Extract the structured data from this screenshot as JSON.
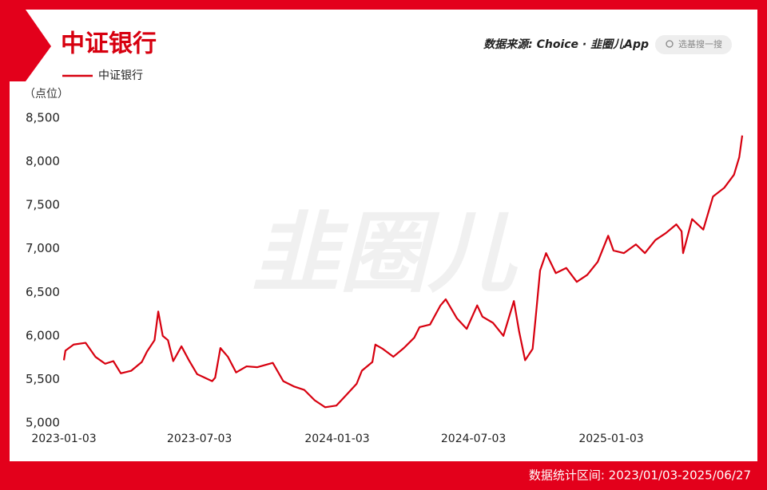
{
  "chart_data": {
    "type": "line",
    "title": "中证银行",
    "unit_label": "（点位）",
    "source": "数据来源: Choice · 韭圈儿App",
    "search_placeholder": "选基搜一搜",
    "watermark": "韭圈儿",
    "footer": "数据统计区间: 2023/01/03-2025/06/27",
    "x": [
      "2023-01-03",
      "2023-01-05",
      "2023-01-16",
      "2023-02-01",
      "2023-02-14",
      "2023-02-27",
      "2023-03-10",
      "2023-03-20",
      "2023-04-03",
      "2023-04-17",
      "2023-04-24",
      "2023-05-04",
      "2023-05-09",
      "2023-05-15",
      "2023-05-22",
      "2023-05-29",
      "2023-06-09",
      "2023-06-19",
      "2023-06-30",
      "2023-07-10",
      "2023-07-20",
      "2023-07-24",
      "2023-07-31",
      "2023-08-10",
      "2023-08-21",
      "2023-09-04",
      "2023-09-18",
      "2023-10-09",
      "2023-10-23",
      "2023-11-06",
      "2023-11-20",
      "2023-12-04",
      "2023-12-18",
      "2024-01-02",
      "2024-01-15",
      "2024-01-29",
      "2024-02-05",
      "2024-02-19",
      "2024-02-23",
      "2024-03-04",
      "2024-03-18",
      "2024-04-01",
      "2024-04-15",
      "2024-04-22",
      "2024-05-06",
      "2024-05-20",
      "2024-05-27",
      "2024-06-11",
      "2024-06-24",
      "2024-07-08",
      "2024-07-15",
      "2024-07-29",
      "2024-08-12",
      "2024-08-26",
      "2024-09-02",
      "2024-09-10",
      "2024-09-20",
      "2024-09-24",
      "2024-09-30",
      "2024-10-08",
      "2024-10-21",
      "2024-11-04",
      "2024-11-18",
      "2024-12-02",
      "2024-12-16",
      "2024-12-30",
      "2025-01-06",
      "2025-01-20",
      "2025-02-05",
      "2025-02-17",
      "2025-03-03",
      "2025-03-17",
      "2025-03-31",
      "2025-04-07",
      "2025-04-09",
      "2025-04-21",
      "2025-05-06",
      "2025-05-19",
      "2025-06-03",
      "2025-06-16",
      "2025-06-23",
      "2025-06-27"
    ],
    "series": [
      {
        "name": "中证银行",
        "color": "#d7000f",
        "values": [
          5720,
          5830,
          5900,
          5920,
          5760,
          5680,
          5710,
          5570,
          5600,
          5700,
          5820,
          5950,
          6280,
          6000,
          5950,
          5710,
          5880,
          5720,
          5560,
          5520,
          5480,
          5520,
          5860,
          5760,
          5580,
          5650,
          5640,
          5690,
          5480,
          5420,
          5380,
          5260,
          5180,
          5200,
          5320,
          5450,
          5600,
          5700,
          5900,
          5850,
          5760,
          5860,
          5980,
          6100,
          6130,
          6350,
          6420,
          6200,
          6080,
          6350,
          6220,
          6150,
          6000,
          6400,
          6050,
          5720,
          5850,
          6200,
          6750,
          6950,
          6720,
          6780,
          6620,
          6700,
          6850,
          7150,
          6980,
          6950,
          7050,
          6950,
          7100,
          7180,
          7280,
          7200,
          6950,
          7340,
          7220,
          7600,
          7700,
          7850,
          8050,
          8300
        ]
      }
    ],
    "xlim": [
      "2023-01-03",
      "2025-06-27"
    ],
    "xticks": [
      "2023-01-03",
      "2023-07-03",
      "2024-01-03",
      "2024-07-03",
      "2025-01-03"
    ],
    "ylim": [
      5000,
      8500
    ],
    "yticks": [
      {
        "value": 5000,
        "label": "5,000"
      },
      {
        "value": 5500,
        "label": "5,500"
      },
      {
        "value": 6000,
        "label": "6,000"
      },
      {
        "value": 6500,
        "label": "6,500"
      },
      {
        "value": 7000,
        "label": "7,000"
      },
      {
        "value": 7500,
        "label": "7,500"
      },
      {
        "value": 8000,
        "label": "8,000"
      },
      {
        "value": 8500,
        "label": "8,500"
      }
    ],
    "grid": false
  }
}
